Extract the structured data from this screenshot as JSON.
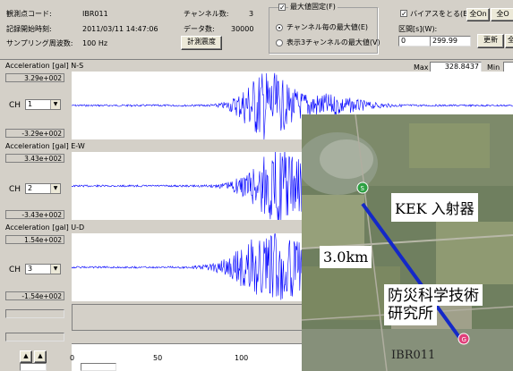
{
  "header": {
    "station_label": "観測点コード:",
    "station_value": "IBR011",
    "record_start_label": "記録開始時刻:",
    "record_start_value": "2011/03/11 14:47:06",
    "sampling_label": "サンプリング周波数:",
    "sampling_value": "100 Hz",
    "channels_label": "チャンネル数:",
    "channels_value": "3",
    "datacount_label": "データ数:",
    "datacount_value": "30000",
    "intensity_button": "計測震度",
    "maxfix_label": "最大値固定(F)",
    "radio_each_label": "チャンネル毎の最大値(E)",
    "radio_display_label": "表示3チャンネルの最大値(V)",
    "bias_label": "バイアスをとる(B)",
    "all_on_button": "全On",
    "all_off_button": "全O",
    "range_label": "区間[s](W):",
    "range_from": "0",
    "range_sep": "~",
    "range_to": "299.99",
    "update_button": "更新",
    "extra_button": "全",
    "max_label": "Max",
    "max_value": "328.8437",
    "min_label": "Min"
  },
  "channels": [
    {
      "title": "Acceleration [gal] N-S",
      "top_scale": "3.29e+002",
      "bottom_scale": "-3.29e+002",
      "ch_label": "CH",
      "ch_value": "1"
    },
    {
      "title": "Acceleration [gal] E-W",
      "top_scale": "3.43e+002",
      "bottom_scale": "-3.43e+002",
      "ch_label": "CH",
      "ch_value": "2"
    },
    {
      "title": "Acceleration [gal] U-D",
      "top_scale": "1.54e+002",
      "bottom_scale": "-1.54e+002",
      "ch_label": "CH",
      "ch_value": "3"
    }
  ],
  "timeaxis": {
    "ticks": [
      "0",
      "50",
      "100"
    ]
  },
  "map": {
    "kek_label": "KEK 入射器",
    "distance_label": "3.0km",
    "nied_line1": "防災科学技術",
    "nied_line2": "研究所",
    "station_label": "IBR011"
  },
  "colors": {
    "waveform": "#0000ff",
    "line": "#1428c8"
  }
}
